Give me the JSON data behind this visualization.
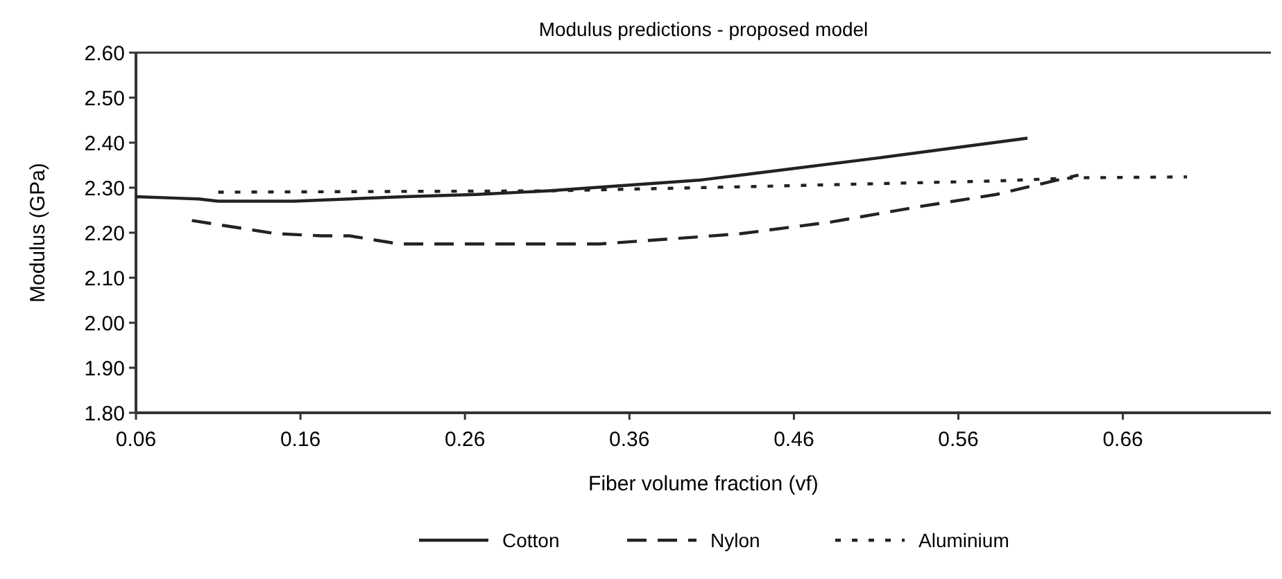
{
  "chart_data": {
    "type": "line",
    "title": "Modulus predictions - proposed model",
    "xlabel": "Fiber volume fraction (vf)",
    "ylabel": "Modulus (GPa)",
    "xlim": [
      0.06,
      0.75
    ],
    "xticks": [
      0.06,
      0.16,
      0.26,
      0.36,
      0.46,
      0.56,
      0.66
    ],
    "ylim": [
      1.8,
      2.6
    ],
    "yticks": [
      {
        "value": 1.8,
        "label": "1.80"
      },
      {
        "value": 1.9,
        "label": "1.90"
      },
      {
        "value": 2.0,
        "label": "2.00"
      },
      {
        "value": 2.1,
        "label": "2.10"
      },
      {
        "value": 2.2,
        "label": "2.20"
      },
      {
        "value": 2.3,
        "label": "2.30"
      },
      {
        "value": 2.4,
        "label": "2.40"
      },
      {
        "value": 2.5,
        "label": "2.50"
      },
      {
        "value": 2.6,
        "label": "2.60"
      }
    ],
    "grid": false,
    "legend": "bottom",
    "marker": "none",
    "series": [
      {
        "name": "Cotton",
        "color": "#222222",
        "line_style": "solid",
        "x": [
          0.06,
          0.098,
          0.11,
          0.156,
          0.223,
          0.267,
          0.311,
          0.403,
          0.428,
          0.511,
          0.602
        ],
        "values": [
          2.28,
          2.275,
          2.27,
          2.27,
          2.28,
          2.285,
          2.293,
          2.317,
          2.328,
          2.366,
          2.41
        ]
      },
      {
        "name": "Nylon",
        "color": "#222222",
        "line_style": "dashed",
        "x": [
          0.094,
          0.145,
          0.173,
          0.19,
          0.22,
          0.311,
          0.342,
          0.403,
          0.428,
          0.483,
          0.538,
          0.583,
          0.633
        ],
        "values": [
          2.227,
          2.198,
          2.193,
          2.193,
          2.175,
          2.175,
          2.175,
          2.191,
          2.198,
          2.224,
          2.259,
          2.285,
          2.328
        ]
      },
      {
        "name": "Aluminium",
        "color": "#222222",
        "line_style": "dotted",
        "x": [
          0.11,
          0.311,
          0.428,
          0.583,
          0.633,
          0.699
        ],
        "values": [
          2.29,
          2.293,
          2.302,
          2.315,
          2.322,
          2.324
        ]
      }
    ]
  }
}
